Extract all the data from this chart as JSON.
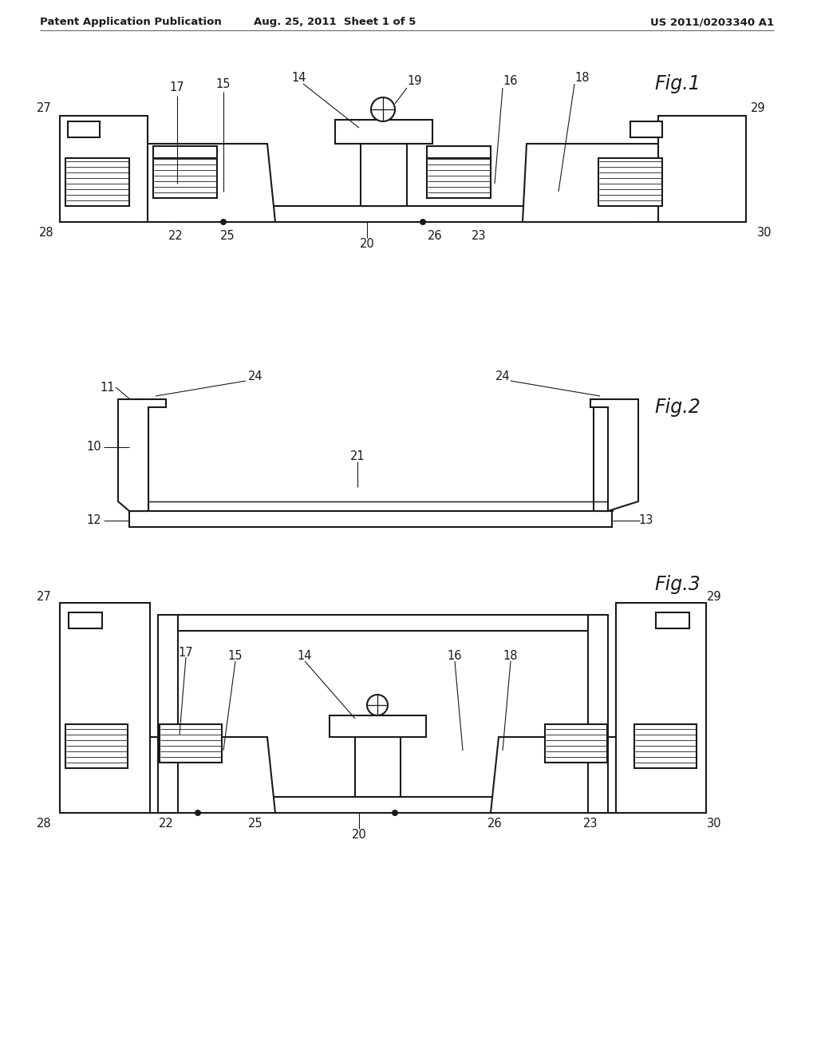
{
  "background_color": "#ffffff",
  "header_left": "Patent Application Publication",
  "header_mid": "Aug. 25, 2011  Sheet 1 of 5",
  "header_right": "US 2011/0203340 A1",
  "fig1_label": "Fig.1",
  "fig2_label": "Fig.2",
  "fig3_label": "Fig.3",
  "line_color": "#1a1a1a",
  "line_width": 1.5
}
